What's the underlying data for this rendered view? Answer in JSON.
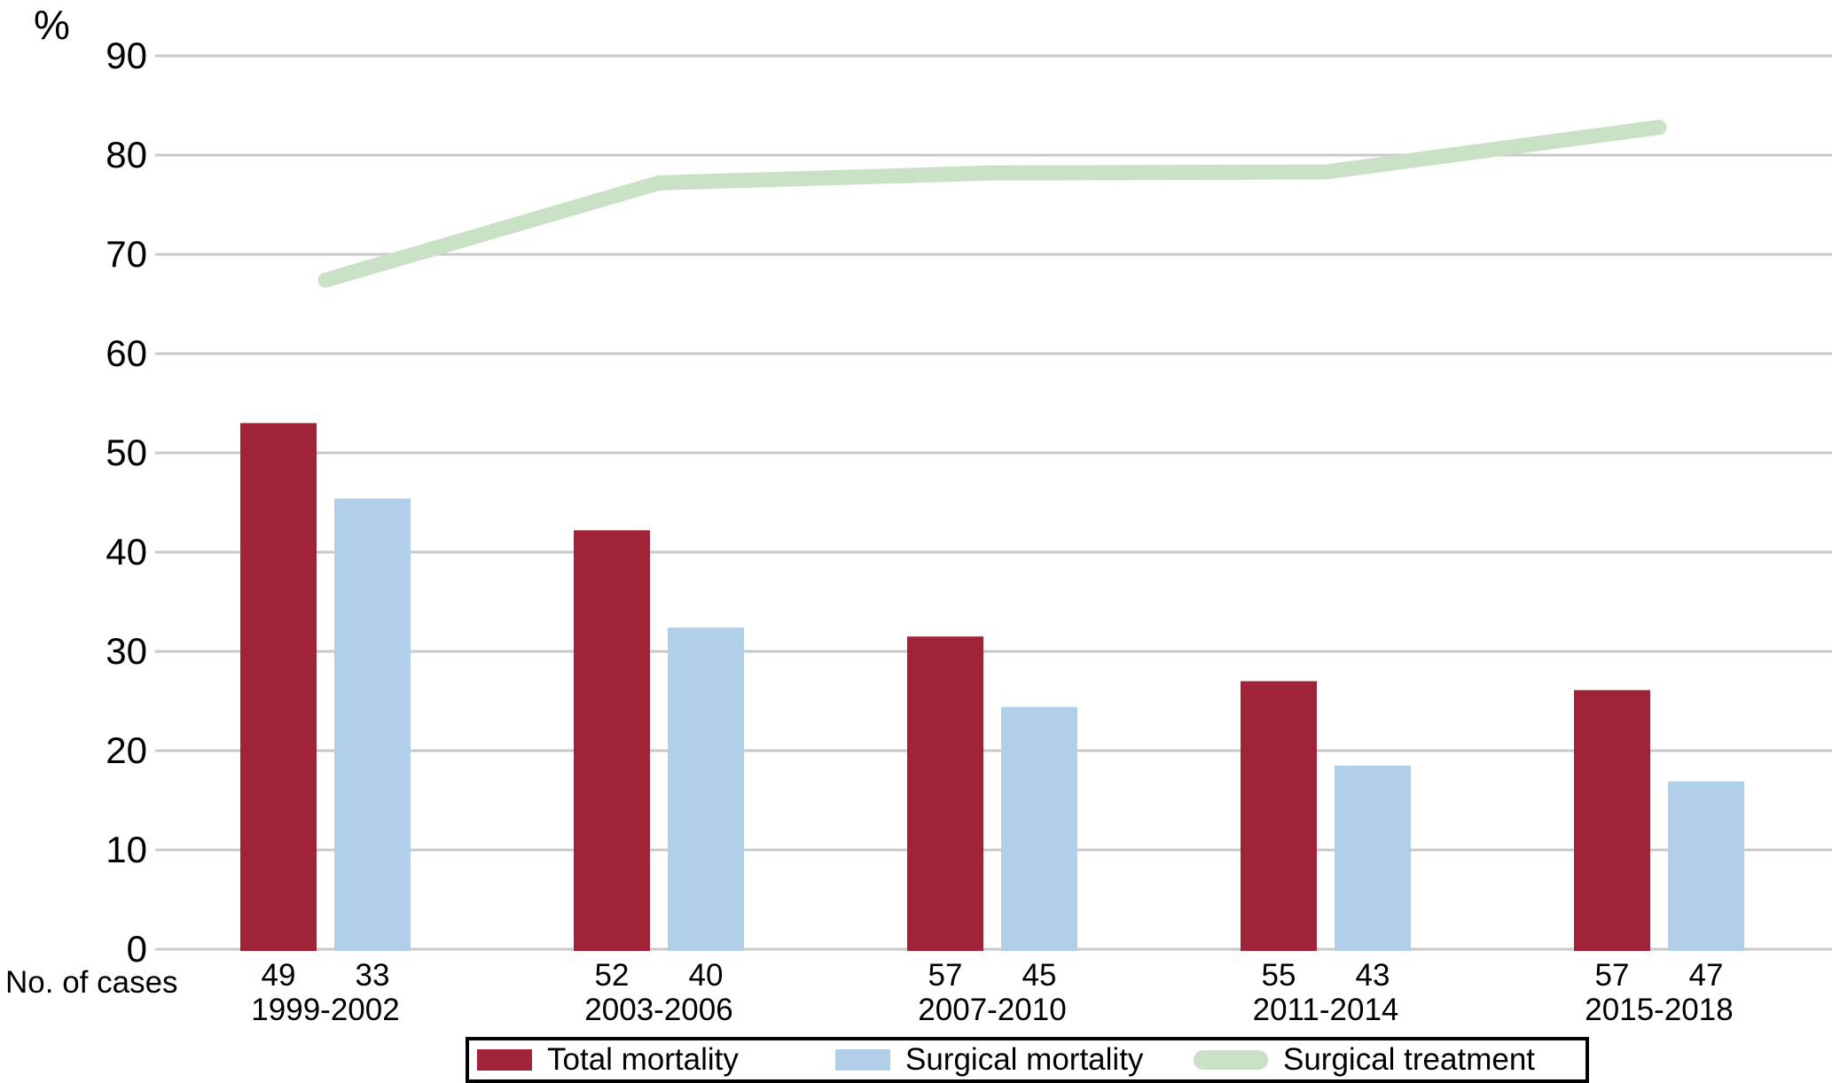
{
  "chart_data": {
    "type": "bar",
    "title": "",
    "ylabel": "%",
    "xlabel": "",
    "cases_row_label": "No. of cases",
    "ylim": [
      0,
      90
    ],
    "yticks": [
      0,
      10,
      20,
      30,
      40,
      50,
      60,
      70,
      80,
      90
    ],
    "grid": true,
    "legend_position": "bottom",
    "categories": [
      "1999-2002",
      "2003-2006",
      "2007-2010",
      "2011-2014",
      "2015-2018"
    ],
    "series": [
      {
        "name": "Total mortality",
        "type": "bar",
        "color": "#a12337",
        "values": [
          53.0,
          42.2,
          31.5,
          27.0,
          26.1
        ],
        "cases": [
          49,
          52,
          57,
          55,
          57
        ]
      },
      {
        "name": "Surgical mortality",
        "type": "bar",
        "color": "#b2cfe9",
        "values": [
          45.4,
          32.4,
          24.4,
          18.5,
          16.9
        ],
        "cases": [
          33,
          40,
          45,
          43,
          47
        ]
      },
      {
        "name": "Surgical treatment",
        "type": "line",
        "color": "#c9e1c4",
        "values": [
          67.4,
          77.2,
          78.2,
          78.3,
          82.8
        ]
      }
    ],
    "colors": {
      "gridline": "#c8c8c8",
      "text": "#000000",
      "legend_border": "#000000",
      "background": "#ffffff"
    }
  }
}
